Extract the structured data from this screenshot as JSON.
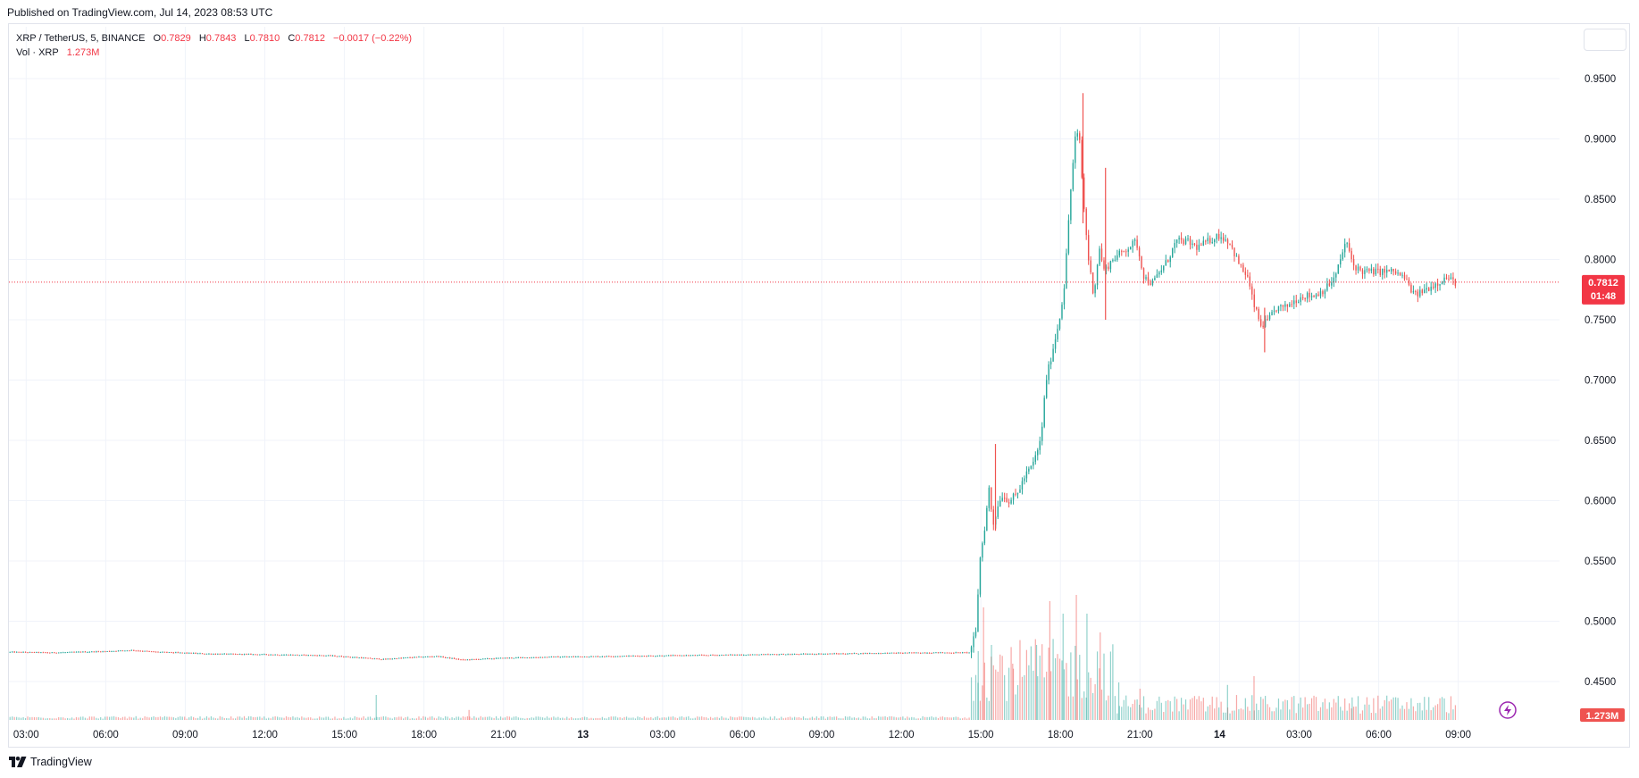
{
  "published": "Published on TradingView.com, Jul 14, 2023 08:53 UTC",
  "legend": {
    "symbol": "XRP / TetherUS, 5, BINANCE",
    "o_label": "O",
    "o_value": "0.7829",
    "h_label": "H",
    "h_value": "0.7843",
    "l_label": "L",
    "l_value": "0.7810",
    "c_label": "C",
    "c_value": "0.7812",
    "change": "−0.0017 (−0.22%)",
    "vol_label": "Vol · XRP",
    "vol_value": "1.273M"
  },
  "price_badge": {
    "price": "0.7812",
    "countdown": "01:48"
  },
  "volume_badge": "1.273M",
  "footer": {
    "brand": "TradingView",
    "logo_icon": "tradingview-logo-icon"
  },
  "colors": {
    "up": "#26a69a",
    "down": "#ef5350",
    "price_line": "#f23645",
    "grid": "#f0f3fa",
    "text": "#131722"
  },
  "chart_data": {
    "type": "candlestick",
    "symbol": "XRP / TetherUS",
    "interval": "5",
    "exchange": "BINANCE",
    "ylim": [
      0.42,
      0.97
    ],
    "y_ticks": [
      0.45,
      0.5,
      0.55,
      0.6,
      0.65,
      0.7,
      0.75,
      0.8,
      0.85,
      0.9,
      0.95
    ],
    "y_tick_labels": [
      "0.4500",
      "0.5000",
      "0.5500",
      "0.6000",
      "0.6500",
      "0.7000",
      "0.7500",
      "0.8000",
      "0.8500",
      "0.9000",
      "0.9500"
    ],
    "x_ticks": [
      {
        "label": "03:00",
        "hour": 3
      },
      {
        "label": "06:00",
        "hour": 6
      },
      {
        "label": "09:00",
        "hour": 9
      },
      {
        "label": "12:00",
        "hour": 12
      },
      {
        "label": "15:00",
        "hour": 15
      },
      {
        "label": "18:00",
        "hour": 18
      },
      {
        "label": "21:00",
        "hour": 21
      },
      {
        "label": "13",
        "hour": 24,
        "bold": true
      },
      {
        "label": "03:00",
        "hour": 27
      },
      {
        "label": "06:00",
        "hour": 30
      },
      {
        "label": "09:00",
        "hour": 33
      },
      {
        "label": "12:00",
        "hour": 36
      },
      {
        "label": "15:00",
        "hour": 39
      },
      {
        "label": "18:00",
        "hour": 42
      },
      {
        "label": "21:00",
        "hour": 45
      },
      {
        "label": "14",
        "hour": 48,
        "bold": true
      },
      {
        "label": "03:00",
        "hour": 51
      },
      {
        "label": "06:00",
        "hour": 54
      },
      {
        "label": "09:00",
        "hour": 57
      }
    ],
    "x_range_hours": [
      2.35,
      59.0
    ],
    "last_price": 0.7812,
    "price_path": [
      [
        2.35,
        0.4745
      ],
      [
        4.0,
        0.474
      ],
      [
        6.0,
        0.475
      ],
      [
        7.0,
        0.476
      ],
      [
        8.0,
        0.4745
      ],
      [
        10.0,
        0.473
      ],
      [
        12.0,
        0.4725
      ],
      [
        13.5,
        0.472
      ],
      [
        14.5,
        0.4715
      ],
      [
        15.5,
        0.47
      ],
      [
        16.5,
        0.4685
      ],
      [
        17.5,
        0.47
      ],
      [
        18.5,
        0.471
      ],
      [
        19.5,
        0.468
      ],
      [
        20.0,
        0.4685
      ],
      [
        21.0,
        0.4695
      ],
      [
        23.0,
        0.4705
      ],
      [
        25.0,
        0.471
      ],
      [
        27.0,
        0.4715
      ],
      [
        29.0,
        0.472
      ],
      [
        31.0,
        0.4725
      ],
      [
        33.0,
        0.473
      ],
      [
        35.0,
        0.4735
      ],
      [
        37.0,
        0.474
      ],
      [
        38.6,
        0.474
      ],
      [
        38.85,
        0.49
      ],
      [
        39.0,
        0.55
      ],
      [
        39.2,
        0.58
      ],
      [
        39.35,
        0.61
      ],
      [
        39.5,
        0.58
      ],
      [
        39.8,
        0.605
      ],
      [
        40.1,
        0.6
      ],
      [
        40.4,
        0.605
      ],
      [
        40.7,
        0.62
      ],
      [
        41.0,
        0.63
      ],
      [
        41.3,
        0.65
      ],
      [
        41.5,
        0.7
      ],
      [
        41.7,
        0.72
      ],
      [
        42.0,
        0.75
      ],
      [
        42.2,
        0.78
      ],
      [
        42.4,
        0.85
      ],
      [
        42.6,
        0.9
      ],
      [
        42.75,
        0.905
      ],
      [
        42.9,
        0.85
      ],
      [
        43.1,
        0.8
      ],
      [
        43.3,
        0.77
      ],
      [
        43.5,
        0.81
      ],
      [
        43.7,
        0.79
      ],
      [
        44.0,
        0.8
      ],
      [
        44.3,
        0.805
      ],
      [
        44.6,
        0.81
      ],
      [
        44.9,
        0.815
      ],
      [
        45.2,
        0.785
      ],
      [
        45.5,
        0.78
      ],
      [
        45.8,
        0.79
      ],
      [
        46.1,
        0.8
      ],
      [
        46.4,
        0.815
      ],
      [
        46.8,
        0.815
      ],
      [
        47.2,
        0.81
      ],
      [
        47.6,
        0.815
      ],
      [
        48.0,
        0.82
      ],
      [
        48.4,
        0.815
      ],
      [
        48.8,
        0.795
      ],
      [
        49.1,
        0.785
      ],
      [
        49.3,
        0.765
      ],
      [
        49.6,
        0.745
      ],
      [
        49.9,
        0.75
      ],
      [
        50.2,
        0.76
      ],
      [
        50.5,
        0.76
      ],
      [
        50.8,
        0.765
      ],
      [
        51.2,
        0.77
      ],
      [
        51.6,
        0.77
      ],
      [
        52.0,
        0.775
      ],
      [
        52.4,
        0.785
      ],
      [
        52.8,
        0.815
      ],
      [
        53.1,
        0.795
      ],
      [
        53.4,
        0.79
      ],
      [
        53.8,
        0.79
      ],
      [
        54.2,
        0.79
      ],
      [
        54.6,
        0.79
      ],
      [
        55.0,
        0.785
      ],
      [
        55.4,
        0.77
      ],
      [
        55.8,
        0.775
      ],
      [
        56.2,
        0.78
      ],
      [
        56.6,
        0.785
      ],
      [
        56.9,
        0.7812
      ]
    ],
    "notable_wicks": [
      {
        "hour": 39.55,
        "high": 0.647,
        "low": 0.575
      },
      {
        "hour": 42.85,
        "high": 0.938,
        "low": 0.83
      },
      {
        "hour": 43.7,
        "high": 0.876,
        "low": 0.75
      },
      {
        "hour": 49.7,
        "high": 0.76,
        "low": 0.723
      }
    ],
    "volume": {
      "last": "1.273M",
      "spikes": [
        {
          "hour": 16.2,
          "rel": 0.2
        },
        {
          "hour": 19.7,
          "rel": 0.08
        },
        {
          "hour": 38.9,
          "rel": 0.55
        },
        {
          "hour": 39.1,
          "rel": 0.9
        },
        {
          "hour": 39.4,
          "rel": 0.6
        },
        {
          "hour": 40.2,
          "rel": 0.45
        },
        {
          "hour": 41.1,
          "rel": 0.6
        },
        {
          "hour": 41.6,
          "rel": 0.95
        },
        {
          "hour": 42.1,
          "rel": 0.85
        },
        {
          "hour": 42.6,
          "rel": 1.0
        },
        {
          "hour": 43.0,
          "rel": 0.85
        },
        {
          "hour": 43.5,
          "rel": 0.7
        },
        {
          "hour": 44.2,
          "rel": 0.3
        },
        {
          "hour": 45.0,
          "rel": 0.25
        },
        {
          "hour": 48.3,
          "rel": 0.28
        },
        {
          "hour": 49.3,
          "rel": 0.35
        },
        {
          "hour": 53.0,
          "rel": 0.18
        }
      ]
    }
  }
}
